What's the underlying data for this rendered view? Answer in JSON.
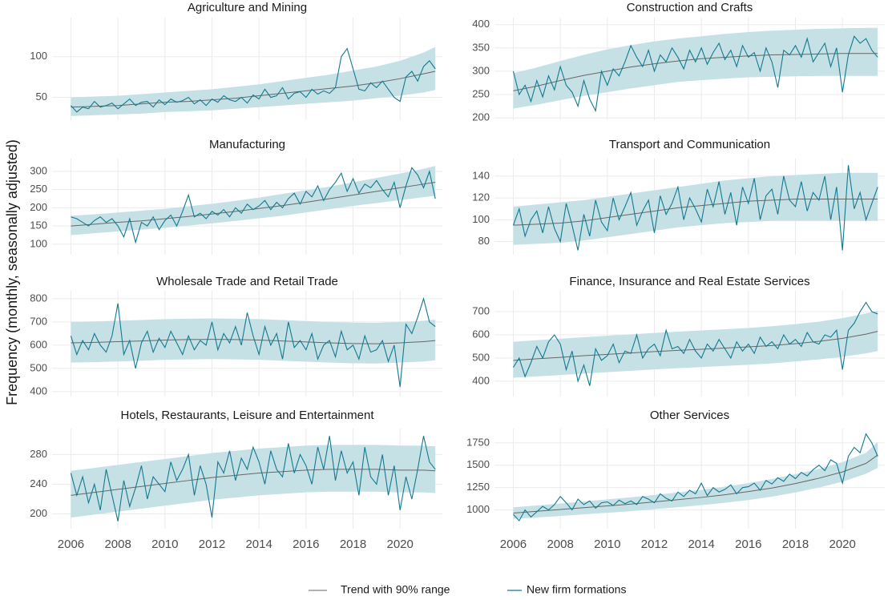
{
  "chart_data": {
    "type": "line",
    "ylabel": "Frequency (monthly, seasonally adjusted)",
    "xlim": [
      2005.2,
      2021.8
    ],
    "xticks": [
      2006,
      2008,
      2010,
      2012,
      2014,
      2016,
      2018,
      2020
    ],
    "grid": true,
    "legend": "bottom",
    "band_color": "#c6e1e6",
    "series": [
      {
        "name": "Trend with 90% range",
        "color": "#666666"
      },
      {
        "name": "New firm formations",
        "color": "#12798f"
      }
    ],
    "x": [
      2006,
      2006.25,
      2006.5,
      2006.75,
      2007,
      2007.25,
      2007.5,
      2007.75,
      2008,
      2008.25,
      2008.5,
      2008.75,
      2009,
      2009.25,
      2009.5,
      2009.75,
      2010,
      2010.25,
      2010.5,
      2010.75,
      2011,
      2011.25,
      2011.5,
      2011.75,
      2012,
      2012.25,
      2012.5,
      2012.75,
      2013,
      2013.25,
      2013.5,
      2013.75,
      2014,
      2014.25,
      2014.5,
      2014.75,
      2015,
      2015.25,
      2015.5,
      2015.75,
      2016,
      2016.25,
      2016.5,
      2016.75,
      2017,
      2017.25,
      2017.5,
      2017.75,
      2018,
      2018.25,
      2018.5,
      2018.75,
      2019,
      2019.25,
      2019.5,
      2019.75,
      2020,
      2020.25,
      2020.5,
      2020.75,
      2021,
      2021.25,
      2021.5
    ],
    "trend_x": [
      2006,
      2007,
      2008,
      2009,
      2010,
      2011,
      2012,
      2013,
      2014,
      2015,
      2016,
      2017,
      2018,
      2019,
      2020,
      2021,
      2021.5
    ],
    "panels": [
      {
        "title": "Agriculture and Mining",
        "ylim": [
          22,
          148
        ],
        "yticks": [
          50,
          100
        ],
        "trend": [
          38,
          39,
          40,
          42,
          44,
          45,
          47,
          49,
          52,
          55,
          58,
          61,
          64,
          68,
          73,
          79,
          82
        ],
        "lower": [
          27,
          28,
          29,
          30,
          32,
          33,
          34,
          36,
          38,
          40,
          42,
          44,
          46,
          49,
          52,
          56,
          59
        ],
        "upper": [
          50,
          51,
          52,
          54,
          56,
          58,
          60,
          63,
          66,
          70,
          74,
          78,
          83,
          88,
          95,
          105,
          112
        ],
        "values": [
          40,
          32,
          38,
          36,
          45,
          38,
          40,
          43,
          36,
          42,
          48,
          40,
          44,
          45,
          38,
          47,
          41,
          48,
          44,
          46,
          50,
          42,
          47,
          40,
          48,
          44,
          52,
          47,
          45,
          50,
          43,
          53,
          48,
          60,
          50,
          52,
          62,
          48,
          55,
          57,
          50,
          60,
          54,
          58,
          55,
          62,
          100,
          110,
          85,
          60,
          58,
          68,
          62,
          70,
          60,
          50,
          45,
          75,
          82,
          70,
          88,
          95,
          85
        ]
      },
      {
        "title": "Construction and Crafts",
        "ylim": [
          195,
          415
        ],
        "yticks": [
          200,
          250,
          300,
          350,
          400
        ],
        "trend": [
          258,
          268,
          280,
          291,
          300,
          309,
          316,
          322,
          327,
          330,
          333,
          335,
          336,
          337,
          338,
          338,
          338
        ],
        "lower": [
          220,
          228,
          238,
          247,
          255,
          263,
          270,
          277,
          281,
          284,
          287,
          288,
          289,
          290,
          290,
          290,
          290
        ],
        "upper": [
          296,
          308,
          322,
          335,
          347,
          356,
          364,
          370,
          375,
          380,
          384,
          387,
          389,
          391,
          392,
          393,
          393
        ],
        "values": [
          300,
          250,
          270,
          235,
          280,
          245,
          290,
          260,
          310,
          270,
          255,
          225,
          280,
          240,
          215,
          300,
          270,
          305,
          290,
          320,
          355,
          330,
          310,
          345,
          300,
          335,
          320,
          350,
          330,
          305,
          345,
          320,
          350,
          315,
          340,
          360,
          325,
          345,
          310,
          355,
          330,
          340,
          300,
          350,
          320,
          265,
          345,
          335,
          355,
          330,
          370,
          320,
          340,
          360,
          310,
          350,
          255,
          335,
          375,
          360,
          370,
          345,
          330
        ]
      },
      {
        "title": "Manufacturing",
        "ylim": [
          71,
          335
        ],
        "yticks": [
          100,
          150,
          200,
          250,
          300
        ],
        "trend": [
          150,
          155,
          160,
          164,
          170,
          176,
          183,
          190,
          198,
          206,
          215,
          225,
          235,
          245,
          255,
          265,
          270
        ],
        "lower": [
          125,
          130,
          135,
          140,
          145,
          151,
          157,
          164,
          171,
          178,
          187,
          196,
          205,
          213,
          221,
          229,
          233
        ],
        "upper": [
          178,
          182,
          187,
          192,
          197,
          204,
          211,
          219,
          228,
          238,
          248,
          258,
          270,
          282,
          294,
          307,
          315
        ],
        "values": [
          175,
          170,
          160,
          150,
          165,
          175,
          160,
          170,
          150,
          120,
          170,
          105,
          160,
          150,
          175,
          140,
          165,
          180,
          150,
          190,
          235,
          175,
          185,
          170,
          190,
          180,
          195,
          175,
          200,
          185,
          210,
          195,
          205,
          220,
          195,
          215,
          200,
          225,
          240,
          210,
          245,
          230,
          260,
          220,
          250,
          270,
          295,
          245,
          280,
          240,
          265,
          255,
          275,
          250,
          230,
          270,
          200,
          260,
          310,
          290,
          255,
          300,
          225
        ]
      },
      {
        "title": "Transport and Communication",
        "ylim": [
          68,
          156
        ],
        "yticks": [
          80,
          100,
          120,
          140
        ],
        "trend": [
          95,
          96,
          97,
          99,
          102,
          105,
          108,
          111,
          113,
          115,
          117,
          118,
          119,
          119,
          119,
          119,
          119
        ],
        "lower": [
          77,
          78,
          79,
          81,
          84,
          87,
          90,
          93,
          95,
          97,
          98,
          99,
          99,
          99,
          99,
          99,
          99
        ],
        "upper": [
          112,
          114,
          116,
          118,
          121,
          124,
          127,
          130,
          133,
          136,
          138,
          140,
          141,
          142,
          143,
          143,
          143
        ],
        "values": [
          95,
          110,
          85,
          100,
          108,
          88,
          112,
          92,
          80,
          115,
          95,
          72,
          105,
          85,
          118,
          98,
          90,
          120,
          100,
          112,
          125,
          95,
          108,
          118,
          88,
          122,
          105,
          115,
          130,
          100,
          120,
          110,
          98,
          128,
          112,
          135,
          105,
          125,
          95,
          130,
          115,
          138,
          100,
          122,
          128,
          105,
          140,
          118,
          112,
          135,
          108,
          125,
          118,
          140,
          100,
          130,
          72,
          150,
          110,
          125,
          100,
          115,
          130
        ]
      },
      {
        "title": "Wholesale Trade and Retail Trade",
        "ylim": [
          379,
          834
        ],
        "yticks": [
          400,
          500,
          600,
          700,
          800
        ],
        "trend": [
          610,
          612,
          615,
          618,
          622,
          624,
          625,
          624,
          622,
          618,
          614,
          610,
          607,
          606,
          610,
          615,
          620
        ],
        "lower": [
          525,
          527,
          530,
          533,
          537,
          539,
          540,
          539,
          537,
          533,
          529,
          525,
          522,
          521,
          525,
          530,
          535
        ],
        "upper": [
          700,
          702,
          705,
          708,
          712,
          714,
          715,
          714,
          712,
          708,
          704,
          700,
          697,
          696,
          700,
          705,
          710
        ],
        "values": [
          640,
          560,
          620,
          580,
          650,
          600,
          570,
          640,
          780,
          560,
          620,
          500,
          610,
          660,
          570,
          630,
          590,
          660,
          610,
          560,
          640,
          580,
          620,
          600,
          700,
          580,
          650,
          610,
          680,
          600,
          740,
          640,
          560,
          680,
          600,
          650,
          540,
          700,
          590,
          620,
          580,
          650,
          540,
          600,
          620,
          550,
          660,
          580,
          600,
          540,
          640,
          570,
          580,
          620,
          530,
          600,
          420,
          690,
          650,
          720,
          800,
          700,
          680
        ]
      },
      {
        "title": "Finance, Insurance and Real Estate Services",
        "ylim": [
          334,
          790
        ],
        "yticks": [
          400,
          500,
          600,
          700
        ],
        "trend": [
          490,
          497,
          503,
          510,
          516,
          522,
          528,
          533,
          538,
          543,
          548,
          554,
          562,
          572,
          585,
          603,
          615
        ],
        "lower": [
          415,
          421,
          427,
          433,
          439,
          445,
          451,
          456,
          461,
          466,
          471,
          477,
          485,
          494,
          505,
          520,
          530
        ],
        "upper": [
          570,
          577,
          583,
          590,
          596,
          602,
          608,
          614,
          619,
          624,
          630,
          637,
          646,
          657,
          672,
          692,
          705
        ],
        "values": [
          460,
          500,
          420,
          480,
          550,
          500,
          570,
          600,
          560,
          450,
          530,
          400,
          470,
          380,
          540,
          490,
          510,
          560,
          480,
          530,
          520,
          600,
          500,
          540,
          560,
          510,
          620,
          540,
          550,
          520,
          580,
          530,
          500,
          560,
          530,
          580,
          540,
          500,
          570,
          530,
          560,
          520,
          590,
          550,
          570,
          540,
          600,
          560,
          580,
          550,
          610,
          570,
          560,
          600,
          590,
          620,
          450,
          620,
          650,
          700,
          740,
          700,
          690
        ]
      },
      {
        "title": "Hotels, Restaurants, Leisure and Entertainment",
        "ylim": [
          180,
          315
        ],
        "yticks": [
          200,
          240,
          280
        ],
        "trend": [
          225,
          229,
          233,
          237,
          241,
          245,
          249,
          252,
          255,
          257,
          259,
          260,
          260,
          260,
          259,
          259,
          258
        ],
        "lower": [
          195,
          199,
          203,
          207,
          211,
          215,
          219,
          222,
          225,
          227,
          229,
          230,
          230,
          230,
          229,
          229,
          228
        ],
        "upper": [
          258,
          262,
          266,
          270,
          274,
          278,
          282,
          285,
          288,
          290,
          292,
          293,
          293,
          293,
          292,
          292,
          291
        ],
        "values": [
          255,
          225,
          250,
          215,
          240,
          205,
          260,
          225,
          190,
          245,
          210,
          235,
          265,
          220,
          250,
          240,
          230,
          270,
          245,
          260,
          280,
          225,
          265,
          240,
          195,
          270,
          255,
          285,
          245,
          275,
          260,
          290,
          270,
          240,
          285,
          260,
          250,
          295,
          255,
          280,
          265,
          240,
          290,
          260,
          305,
          245,
          285,
          255,
          270,
          225,
          290,
          250,
          240,
          280,
          225,
          265,
          205,
          250,
          220,
          260,
          305,
          270,
          260
        ]
      },
      {
        "title": "Other Services",
        "ylim": [
          790,
          1910
        ],
        "yticks": [
          1000,
          1250,
          1500,
          1750
        ],
        "trend": [
          965,
          985,
          1005,
          1025,
          1045,
          1065,
          1090,
          1115,
          1140,
          1170,
          1205,
          1245,
          1295,
          1355,
          1425,
          1520,
          1615
        ],
        "lower": [
          900,
          915,
          932,
          950,
          968,
          986,
          1008,
          1030,
          1053,
          1080,
          1110,
          1148,
          1195,
          1250,
          1315,
          1405,
          1470
        ],
        "upper": [
          1030,
          1050,
          1072,
          1095,
          1118,
          1142,
          1168,
          1195,
          1225,
          1260,
          1300,
          1345,
          1400,
          1460,
          1535,
          1640,
          1760
        ],
        "values": [
          950,
          880,
          1000,
          920,
          980,
          1040,
          1000,
          1060,
          1150,
          1080,
          1000,
          1120,
          1060,
          1100,
          1020,
          1080,
          1090,
          1050,
          1110,
          1070,
          1100,
          1060,
          1150,
          1120,
          1080,
          1180,
          1130,
          1100,
          1200,
          1150,
          1220,
          1180,
          1300,
          1160,
          1250,
          1200,
          1230,
          1280,
          1180,
          1250,
          1260,
          1300,
          1220,
          1330,
          1290,
          1360,
          1320,
          1400,
          1350,
          1420,
          1380,
          1450,
          1500,
          1440,
          1560,
          1520,
          1300,
          1600,
          1700,
          1640,
          1850,
          1750,
          1600
        ]
      }
    ]
  }
}
